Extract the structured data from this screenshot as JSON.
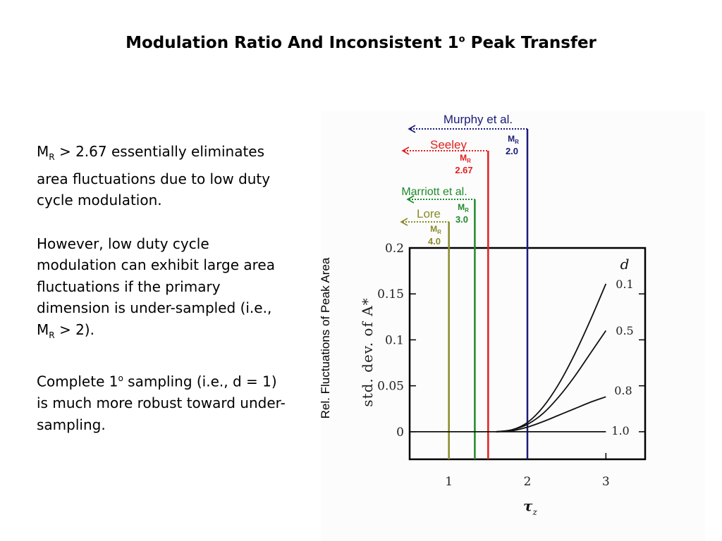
{
  "slide": {
    "title_main": "Modulation Ratio And Inconsistent 1",
    "title_sup": "o",
    "title_end": " Peak Transfer"
  },
  "text": {
    "p1_a": "M",
    "p1_sub": "R",
    "p1_b": " > 2.67 essentially eliminates area fluctuations due to low duty cycle modulation.",
    "p2_a": "However, low duty cycle modulation can exhibit large area fluctuations if the primary dimension is under-sampled (i.e., M",
    "p2_sub": "R",
    "p2_b": " > 2).",
    "p3_a": "Complete 1",
    "p3_sup": "o",
    "p3_b": " sampling (i.e., d = 1) is much more robust toward under-sampling."
  },
  "colors": {
    "murphy": "#1a1a7a",
    "seeley": "#e02020",
    "marriott": "#1f8a2a",
    "lore": "#8a8a2a",
    "curve": "#111111"
  },
  "chart_data": {
    "type": "line",
    "outer_ylabel": "Rel. Fluctuations of Peak Area",
    "ylabel": "std. dev. of A*",
    "xlabel": "τ",
    "xlabel_sub": "z",
    "legend_title": "d",
    "xlim": [
      0.5,
      3.5
    ],
    "ylim": [
      -0.03,
      0.2
    ],
    "xticks": [
      "1",
      "2",
      "3"
    ],
    "yticks": [
      "0",
      "0.05",
      "0.1",
      "0.15",
      "0.2"
    ],
    "series": [
      {
        "name": "0.1",
        "x": [
          1.6,
          1.8,
          2.0,
          2.2,
          2.4,
          2.6,
          2.8,
          3.0
        ],
        "y": [
          0,
          0.002,
          0.01,
          0.027,
          0.052,
          0.084,
          0.121,
          0.161
        ]
      },
      {
        "name": "0.5",
        "x": [
          1.6,
          1.8,
          2.0,
          2.2,
          2.4,
          2.6,
          2.8,
          3.0
        ],
        "y": [
          0,
          0.002,
          0.008,
          0.02,
          0.038,
          0.06,
          0.085,
          0.11
        ]
      },
      {
        "name": "0.8",
        "x": [
          1.6,
          1.8,
          2.0,
          2.2,
          2.4,
          2.6,
          2.8,
          3.0
        ],
        "y": [
          0,
          0.001,
          0.005,
          0.011,
          0.018,
          0.025,
          0.032,
          0.038
        ]
      },
      {
        "name": "1.0",
        "x": [
          0.5,
          3.0
        ],
        "y": [
          0,
          0
        ]
      }
    ],
    "references": [
      {
        "name": "Murphy et al.",
        "mr_label": "M",
        "mr_sub": "R",
        "mr_value": "2.0",
        "x": 2.0,
        "color_key": "murphy"
      },
      {
        "name": "Seeley",
        "mr_label": "M",
        "mr_sub": "R",
        "mr_value": "2.67",
        "x": 1.5,
        "color_key": "seeley"
      },
      {
        "name": "Marriott et al.",
        "mr_label": "M",
        "mr_sub": "R",
        "mr_value": "3.0",
        "x": 1.33,
        "color_key": "marriott"
      },
      {
        "name": "Lore",
        "mr_label": "M",
        "mr_sub": "R",
        "mr_value": "4.0",
        "x": 1.0,
        "color_key": "lore"
      }
    ]
  }
}
